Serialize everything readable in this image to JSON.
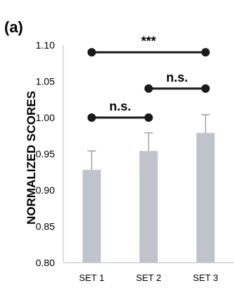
{
  "panel_label": "(a)",
  "chart_data": {
    "type": "bar",
    "title": "",
    "xlabel": "",
    "ylabel": "NORMALIZED SCORES",
    "categories": [
      "SET 1",
      "SET 2",
      "SET 3"
    ],
    "values": [
      0.928,
      0.954,
      0.979
    ],
    "errors": [
      0.026,
      0.025,
      0.025
    ],
    "ylim": [
      0.8,
      1.1
    ],
    "yticks": [
      "0.80",
      "0.85",
      "0.90",
      "0.95",
      "1.00",
      "1.05",
      "1.10"
    ],
    "grid": false,
    "bar_color": "#bfc4cc",
    "error_color": "#9aa0a8",
    "comparisons": [
      {
        "from": "SET 1",
        "to": "SET 2",
        "y": 1.0,
        "label": "n.s."
      },
      {
        "from": "SET 2",
        "to": "SET 3",
        "y": 1.04,
        "label": "n.s."
      },
      {
        "from": "SET 1",
        "to": "SET 3",
        "y": 1.09,
        "label": "***"
      }
    ]
  }
}
